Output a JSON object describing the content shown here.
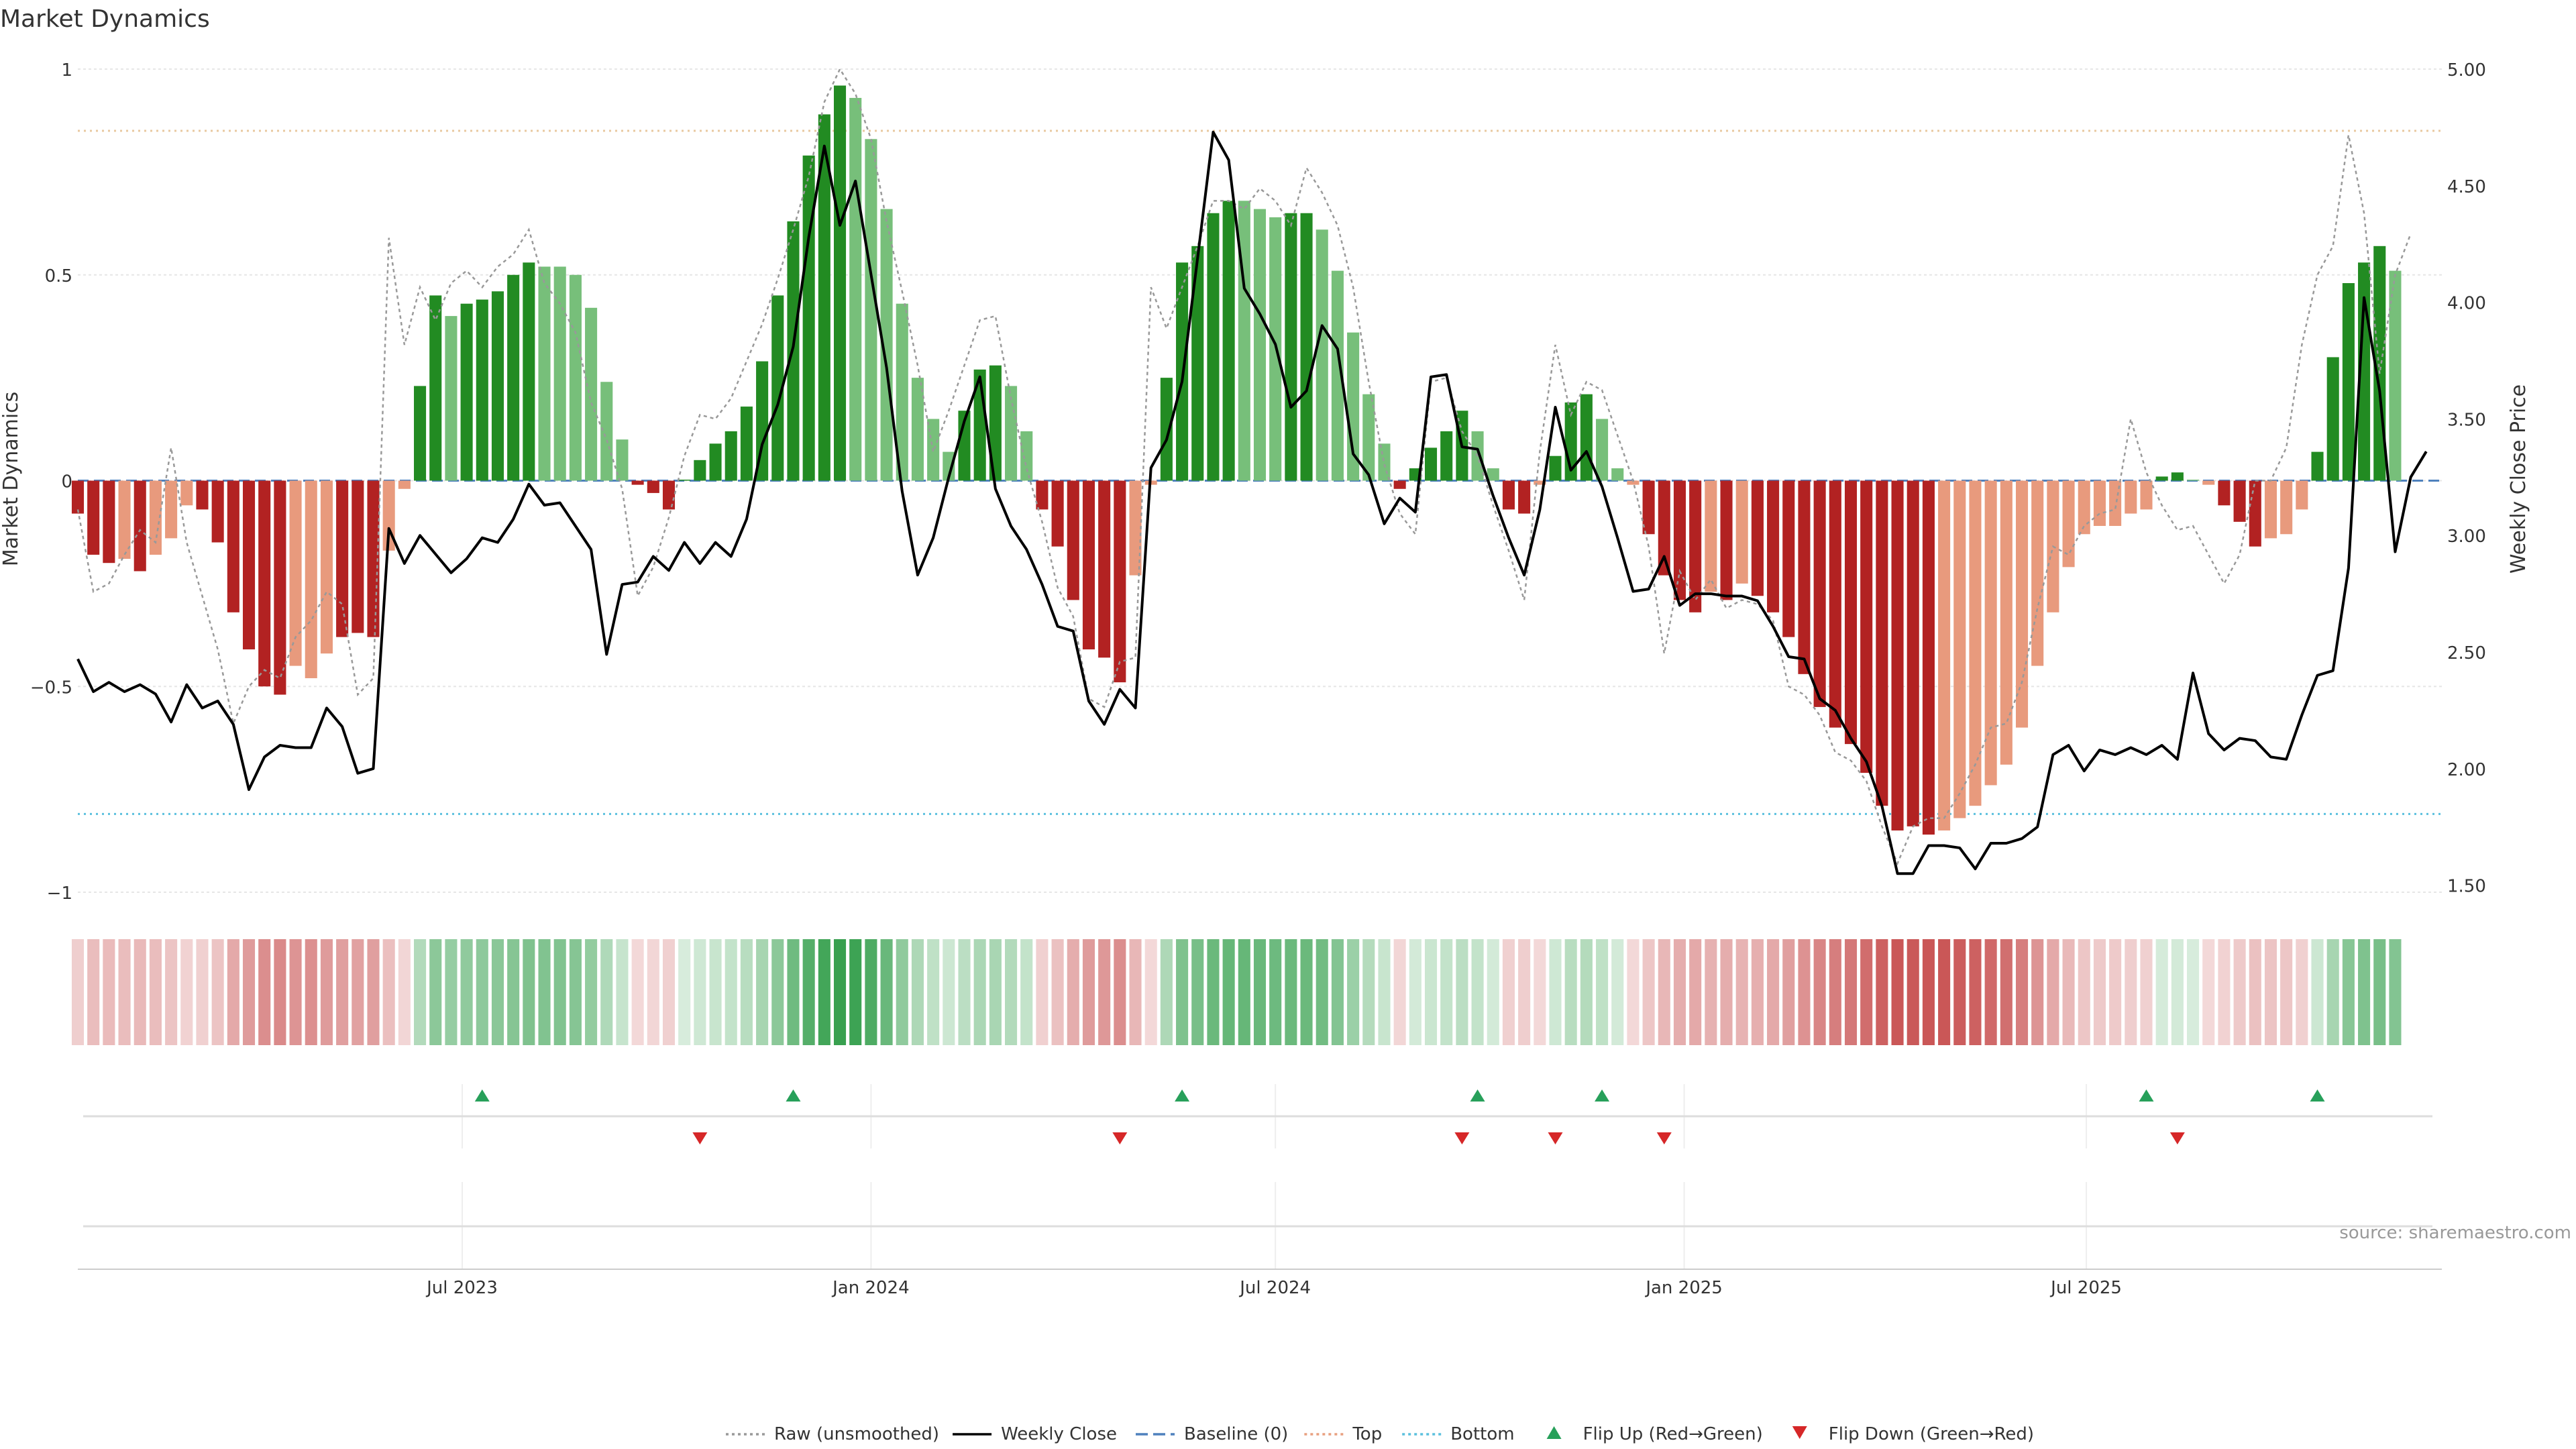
{
  "chart_data": {
    "type": "bar",
    "title": "Market Dynamics",
    "ylabel": "Market Dynamics",
    "y2label": "Weekly Close Price",
    "ylim": [
      -1,
      1
    ],
    "y2lim": [
      1.47,
      5.0
    ],
    "yticks": [
      {
        "value": 1,
        "label": "1"
      },
      {
        "value": 0.5,
        "label": "0.5"
      },
      {
        "value": 0,
        "label": "0"
      },
      {
        "value": -0.5,
        "label": "−0.5"
      },
      {
        "value": -1,
        "label": "−1"
      }
    ],
    "y2ticks": [
      {
        "value": 5.0,
        "label": "5.00"
      },
      {
        "value": 4.5,
        "label": "4.50"
      },
      {
        "value": 4.0,
        "label": "4.00"
      },
      {
        "value": 3.5,
        "label": "3.50"
      },
      {
        "value": 3.0,
        "label": "3.00"
      },
      {
        "value": 2.5,
        "label": "2.50"
      },
      {
        "value": 2.0,
        "label": "2.00"
      },
      {
        "value": 1.5,
        "label": "1.50"
      }
    ],
    "xlim": [
      "2023-01-09",
      "2025-12-08"
    ],
    "xticks": [
      {
        "date": "2023-07-01",
        "label": "Jul 2023"
      },
      {
        "date": "2024-01-01",
        "label": "Jan 2024"
      },
      {
        "date": "2024-07-01",
        "label": "Jul 2024"
      },
      {
        "date": "2025-01-01",
        "label": "Jan 2025"
      },
      {
        "date": "2025-07-01",
        "label": "Jul 2025"
      }
    ],
    "start_date": "2023-01-09",
    "top_level": 0.85,
    "bottom_level": -0.81,
    "baseline": 0,
    "grid": true,
    "legend_placement": "bottom-center",
    "colors": {
      "strong_green": "#228b22",
      "light_green": "#77bf7a",
      "strong_red": "#b22222",
      "light_red": "#e89a7d",
      "close_line": "#000000",
      "raw_line": "#999999",
      "baseline": "#4f81bd",
      "top": "#e8c9a0",
      "bottom": "#5bc0de",
      "flip_up": "#27a05a",
      "flip_down": "#d62728",
      "grid": "#e6e6e6"
    },
    "series": [
      {
        "name": "Market Dynamics",
        "values": [
          -0.08,
          -0.18,
          -0.2,
          -0.19,
          -0.22,
          -0.18,
          -0.14,
          -0.06,
          -0.07,
          -0.15,
          -0.32,
          -0.41,
          -0.5,
          -0.52,
          -0.45,
          -0.48,
          -0.42,
          -0.38,
          -0.37,
          -0.38,
          -0.17,
          -0.02,
          0.23,
          0.45,
          0.4,
          0.43,
          0.44,
          0.46,
          0.5,
          0.53,
          0.52,
          0.52,
          0.5,
          0.42,
          0.24,
          0.1,
          -0.01,
          -0.03,
          -0.07,
          0.0,
          0.05,
          0.09,
          0.12,
          0.18,
          0.29,
          0.45,
          0.63,
          0.79,
          0.89,
          0.96,
          0.93,
          0.83,
          0.66,
          0.43,
          0.25,
          0.15,
          0.07,
          0.17,
          0.27,
          0.28,
          0.23,
          0.12,
          -0.07,
          -0.16,
          -0.29,
          -0.41,
          -0.43,
          -0.49,
          -0.23,
          -0.01,
          0.25,
          0.53,
          0.57,
          0.65,
          0.68,
          0.68,
          0.66,
          0.64,
          0.65,
          0.65,
          0.61,
          0.51,
          0.36,
          0.21,
          0.09,
          -0.02,
          0.03,
          0.08,
          0.12,
          0.17,
          0.12,
          0.03,
          -0.07,
          -0.08,
          -0.01,
          0.06,
          0.19,
          0.21,
          0.15,
          0.03,
          -0.01,
          -0.13,
          -0.23,
          -0.29,
          -0.32,
          -0.27,
          -0.29,
          -0.25,
          -0.28,
          -0.32,
          -0.38,
          -0.47,
          -0.55,
          -0.6,
          -0.64,
          -0.71,
          -0.79,
          -0.85,
          -0.84,
          -0.86,
          -0.85,
          -0.82,
          -0.79,
          -0.74,
          -0.69,
          -0.6,
          -0.45,
          -0.32,
          -0.21,
          -0.13,
          -0.11,
          -0.11,
          -0.08,
          -0.07,
          0.01,
          0.02,
          0.0,
          -0.01,
          -0.06,
          -0.1,
          -0.16,
          -0.14,
          -0.13,
          -0.07,
          0.07,
          0.3,
          0.48,
          0.53,
          0.57,
          0.51
        ],
        "strength": [
          2,
          2,
          2,
          1,
          2,
          1,
          1,
          1,
          2,
          2,
          2,
          2,
          2,
          2,
          1,
          1,
          1,
          2,
          2,
          2,
          1,
          1,
          2,
          2,
          1,
          2,
          2,
          2,
          2,
          2,
          1,
          1,
          1,
          1,
          1,
          1,
          2,
          2,
          2,
          2,
          2,
          2,
          2,
          2,
          2,
          2,
          2,
          2,
          2,
          2,
          1,
          1,
          1,
          1,
          1,
          1,
          1,
          2,
          2,
          2,
          1,
          1,
          2,
          2,
          2,
          2,
          2,
          2,
          1,
          1,
          2,
          2,
          2,
          2,
          2,
          1,
          1,
          1,
          2,
          2,
          1,
          1,
          1,
          1,
          1,
          2,
          2,
          2,
          2,
          2,
          1,
          1,
          2,
          2,
          1,
          2,
          2,
          2,
          1,
          1,
          1,
          2,
          2,
          2,
          2,
          1,
          2,
          1,
          2,
          2,
          2,
          2,
          2,
          2,
          2,
          2,
          2,
          2,
          2,
          2,
          1,
          1,
          1,
          1,
          1,
          1,
          1,
          1,
          1,
          1,
          1,
          1,
          1,
          1,
          2,
          2,
          1,
          1,
          2,
          2,
          2,
          1,
          1,
          1,
          2,
          2,
          2,
          2,
          2,
          1
        ]
      },
      {
        "name": "Raw (unsmoothed)",
        "values": [
          -0.07,
          -0.27,
          -0.25,
          -0.18,
          -0.12,
          -0.15,
          0.08,
          -0.15,
          -0.28,
          -0.41,
          -0.59,
          -0.5,
          -0.46,
          -0.48,
          -0.38,
          -0.34,
          -0.27,
          -0.3,
          -0.52,
          -0.48,
          0.59,
          0.33,
          0.47,
          0.39,
          0.48,
          0.51,
          0.47,
          0.52,
          0.55,
          0.61,
          0.48,
          0.43,
          0.36,
          0.19,
          0.1,
          -0.02,
          -0.28,
          -0.21,
          -0.09,
          0.06,
          0.16,
          0.15,
          0.2,
          0.29,
          0.38,
          0.49,
          0.61,
          0.74,
          0.92,
          1.0,
          0.94,
          0.83,
          0.63,
          0.46,
          0.28,
          0.07,
          0.17,
          0.28,
          0.39,
          0.4,
          0.2,
          0.03,
          -0.1,
          -0.26,
          -0.33,
          -0.53,
          -0.55,
          -0.44,
          -0.43,
          0.47,
          0.37,
          0.47,
          0.57,
          0.68,
          0.68,
          0.66,
          0.71,
          0.68,
          0.62,
          0.76,
          0.7,
          0.62,
          0.47,
          0.24,
          0.04,
          -0.08,
          -0.13,
          0.24,
          0.25,
          0.12,
          0.06,
          -0.06,
          -0.17,
          -0.29,
          0.07,
          0.33,
          0.16,
          0.24,
          0.22,
          0.11,
          0.0,
          -0.16,
          -0.42,
          -0.22,
          -0.29,
          -0.24,
          -0.31,
          -0.29,
          -0.3,
          -0.34,
          -0.5,
          -0.52,
          -0.57,
          -0.66,
          -0.68,
          -0.73,
          -0.84,
          -0.93,
          -0.84,
          -0.82,
          -0.82,
          -0.76,
          -0.69,
          -0.6,
          -0.59,
          -0.49,
          -0.31,
          -0.16,
          -0.18,
          -0.11,
          -0.08,
          -0.07,
          0.15,
          0.02,
          -0.06,
          -0.12,
          -0.11,
          -0.18,
          -0.25,
          -0.18,
          0.0,
          0.0,
          0.08,
          0.33,
          0.5,
          0.57,
          0.84,
          0.65,
          0.26,
          0.5,
          0.6
        ]
      },
      {
        "name": "Weekly Close",
        "values": [
          2.47,
          2.33,
          2.37,
          2.33,
          2.36,
          2.32,
          2.2,
          2.36,
          2.26,
          2.29,
          2.19,
          1.91,
          2.05,
          2.1,
          2.09,
          2.09,
          2.26,
          2.18,
          1.98,
          2.0,
          3.03,
          2.88,
          3.0,
          2.92,
          2.84,
          2.9,
          2.99,
          2.97,
          3.07,
          3.22,
          3.13,
          3.14,
          3.04,
          2.94,
          2.49,
          2.79,
          2.8,
          2.91,
          2.85,
          2.97,
          2.88,
          2.97,
          2.91,
          3.07,
          3.39,
          3.56,
          3.81,
          4.28,
          4.67,
          4.33,
          4.52,
          4.12,
          3.72,
          3.19,
          2.83,
          2.99,
          3.25,
          3.49,
          3.68,
          3.2,
          3.04,
          2.94,
          2.79,
          2.61,
          2.59,
          2.29,
          2.19,
          2.34,
          2.26,
          3.29,
          3.41,
          3.66,
          4.19,
          4.73,
          4.61,
          4.06,
          3.95,
          3.82,
          3.55,
          3.62,
          3.9,
          3.8,
          3.35,
          3.26,
          3.05,
          3.16,
          3.1,
          3.68,
          3.69,
          3.38,
          3.37,
          3.17,
          2.99,
          2.83,
          3.11,
          3.55,
          3.28,
          3.36,
          3.21,
          2.99,
          2.76,
          2.77,
          2.91,
          2.7,
          2.75,
          2.75,
          2.74,
          2.74,
          2.72,
          2.61,
          2.48,
          2.47,
          2.3,
          2.25,
          2.13,
          2.03,
          1.84,
          1.55,
          1.55,
          1.67,
          1.67,
          1.66,
          1.57,
          1.68,
          1.68,
          1.7,
          1.75,
          2.06,
          2.1,
          1.99,
          2.08,
          2.06,
          2.09,
          2.06,
          2.1,
          2.04,
          2.41,
          2.15,
          2.08,
          2.13,
          2.12,
          2.05,
          2.04,
          2.23,
          2.4,
          2.42,
          2.86,
          4.02,
          3.62,
          2.93,
          3.25,
          3.36
        ]
      }
    ],
    "flip_up": [
      {
        "date": "2023-07-10"
      },
      {
        "date": "2023-11-27"
      },
      {
        "date": "2024-05-20"
      },
      {
        "date": "2024-09-30"
      },
      {
        "date": "2024-11-25"
      },
      {
        "date": "2025-07-28"
      },
      {
        "date": "2025-10-13"
      }
    ],
    "flip_down": [
      {
        "date": "2023-10-16"
      },
      {
        "date": "2024-04-22"
      },
      {
        "date": "2024-09-23"
      },
      {
        "date": "2024-11-04"
      },
      {
        "date": "2024-12-23"
      },
      {
        "date": "2025-08-11"
      }
    ],
    "legend": [
      {
        "label": "Raw (unsmoothed)",
        "kind": "line-dotted",
        "color": "#999999"
      },
      {
        "label": "Weekly Close",
        "kind": "line-solid",
        "color": "#000000"
      },
      {
        "label": "Baseline (0)",
        "kind": "line-dashed",
        "color": "#4f81bd"
      },
      {
        "label": "Top",
        "kind": "line-dotted",
        "color": "#e8a080"
      },
      {
        "label": "Bottom",
        "kind": "line-dotted",
        "color": "#5bc0de"
      },
      {
        "label": "Flip Up (Red→Green)",
        "kind": "triangle-up",
        "color": "#27a05a"
      },
      {
        "label": "Flip Down (Green→Red)",
        "kind": "triangle-down",
        "color": "#d62728"
      }
    ]
  },
  "source_text": "source: sharemaestro.com"
}
